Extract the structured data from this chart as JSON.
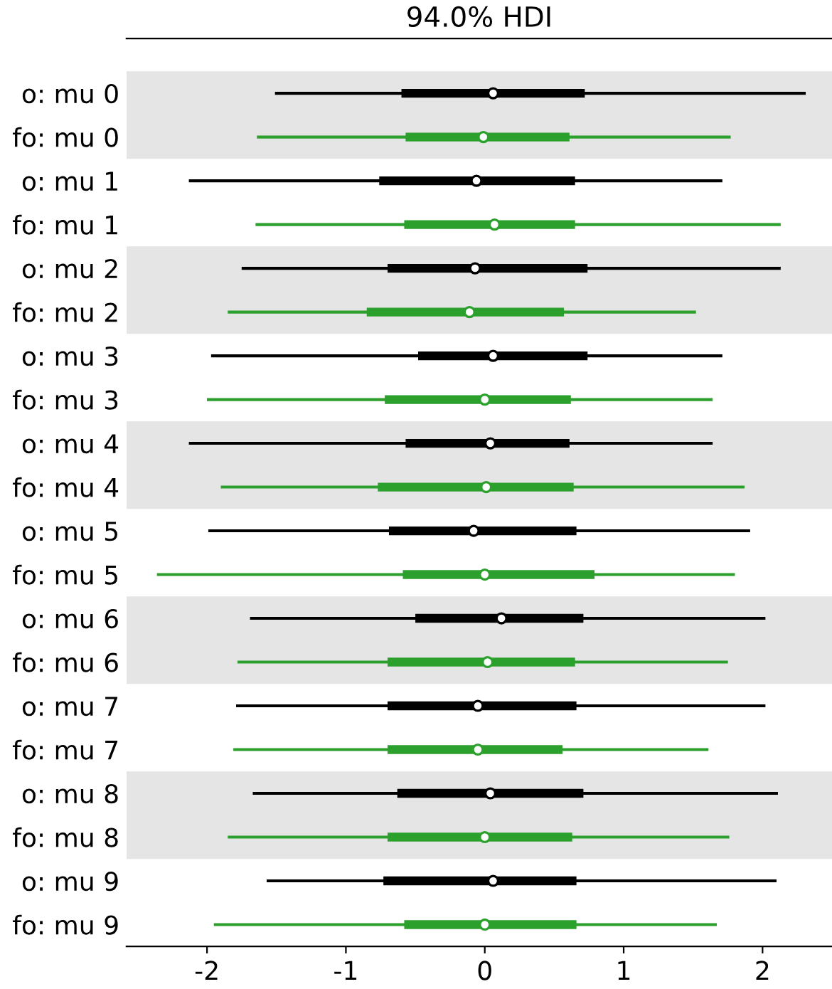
{
  "chart_data": {
    "type": "box",
    "title": "94.0% HDI",
    "orientation": "horizontal",
    "categories": [
      "o: mu 0",
      "fo: mu 0",
      "o: mu 1",
      "fo: mu 1",
      "o: mu 2",
      "fo: mu 2",
      "o: mu 3",
      "fo: mu 3",
      "o: mu 4",
      "fo: mu 4",
      "o: mu 5",
      "fo: mu 5",
      "o: mu 6",
      "fo: mu 6",
      "o: mu 7",
      "fo: mu 7",
      "o: mu 8",
      "fo: mu 8",
      "o: mu 9",
      "fo: mu 9"
    ],
    "colors": [
      "#000000",
      "#2ca02c",
      "#000000",
      "#2ca02c",
      "#000000",
      "#2ca02c",
      "#000000",
      "#2ca02c",
      "#000000",
      "#2ca02c",
      "#000000",
      "#2ca02c",
      "#000000",
      "#2ca02c",
      "#000000",
      "#2ca02c",
      "#000000",
      "#2ca02c",
      "#000000",
      "#2ca02c"
    ],
    "boxes": [
      {
        "low": -1.5,
        "q1": -0.6,
        "median": 0.06,
        "q3": 0.72,
        "high": 2.3
      },
      {
        "low": -1.63,
        "q1": -0.57,
        "median": -0.01,
        "q3": 0.61,
        "high": 1.76
      },
      {
        "low": -2.12,
        "q1": -0.76,
        "median": -0.06,
        "q3": 0.65,
        "high": 1.7
      },
      {
        "low": -1.64,
        "q1": -0.58,
        "median": 0.07,
        "q3": 0.65,
        "high": 2.12
      },
      {
        "low": -1.74,
        "q1": -0.7,
        "median": -0.07,
        "q3": 0.74,
        "high": 2.12
      },
      {
        "low": -1.84,
        "q1": -0.85,
        "median": -0.11,
        "q3": 0.57,
        "high": 1.51
      },
      {
        "low": -1.96,
        "q1": -0.48,
        "median": 0.06,
        "q3": 0.74,
        "high": 1.7
      },
      {
        "low": -1.99,
        "q1": -0.72,
        "median": 0.0,
        "q3": 0.62,
        "high": 1.63
      },
      {
        "low": -2.12,
        "q1": -0.57,
        "median": 0.04,
        "q3": 0.61,
        "high": 1.63
      },
      {
        "low": -1.89,
        "q1": -0.77,
        "median": 0.01,
        "q3": 0.64,
        "high": 1.86
      },
      {
        "low": -1.98,
        "q1": -0.69,
        "median": -0.08,
        "q3": 0.66,
        "high": 1.9
      },
      {
        "low": -2.35,
        "q1": -0.59,
        "median": 0.0,
        "q3": 0.79,
        "high": 1.79
      },
      {
        "low": -1.68,
        "q1": -0.5,
        "median": 0.12,
        "q3": 0.71,
        "high": 2.01
      },
      {
        "low": -1.77,
        "q1": -0.7,
        "median": 0.02,
        "q3": 0.65,
        "high": 1.74
      },
      {
        "low": -1.78,
        "q1": -0.7,
        "median": -0.05,
        "q3": 0.66,
        "high": 2.01
      },
      {
        "low": -1.8,
        "q1": -0.7,
        "median": -0.05,
        "q3": 0.56,
        "high": 1.6
      },
      {
        "low": -1.66,
        "q1": -0.63,
        "median": 0.04,
        "q3": 0.71,
        "high": 2.1
      },
      {
        "low": -1.84,
        "q1": -0.7,
        "median": 0.0,
        "q3": 0.63,
        "high": 1.75
      },
      {
        "low": -1.56,
        "q1": -0.73,
        "median": 0.06,
        "q3": 0.66,
        "high": 2.09
      },
      {
        "low": -1.94,
        "q1": -0.58,
        "median": 0.0,
        "q3": 0.66,
        "high": 1.66
      }
    ],
    "bands": [
      {
        "axis": "y",
        "from": "o: mu 0",
        "to": "fo: mu 0",
        "color": "#e5e5e5"
      },
      {
        "axis": "y",
        "from": "o: mu 2",
        "to": "fo: mu 2",
        "color": "#e5e5e5"
      },
      {
        "axis": "y",
        "from": "o: mu 4",
        "to": "fo: mu 4",
        "color": "#e5e5e5"
      },
      {
        "axis": "y",
        "from": "o: mu 6",
        "to": "fo: mu 6",
        "color": "#e5e5e5"
      },
      {
        "axis": "y",
        "from": "o: mu 8",
        "to": "fo: mu 8",
        "color": "#e5e5e5"
      }
    ],
    "xlim": [
      -2.58,
      2.5
    ],
    "xticks": [
      -2,
      -1,
      0,
      1,
      2
    ],
    "grid": false,
    "legend": false,
    "marker": "circle"
  }
}
